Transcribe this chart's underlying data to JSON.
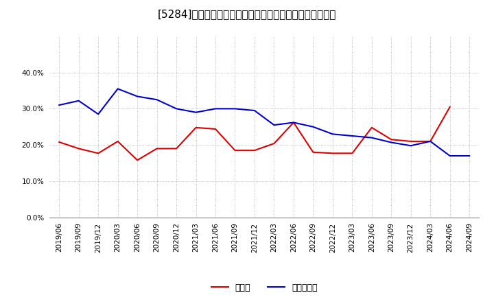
{
  "title": "[5284]　現預金、有利子負債の総資産に対する比率の推移",
  "x_labels": [
    "2019/06",
    "2019/09",
    "2019/12",
    "2020/03",
    "2020/06",
    "2020/09",
    "2020/12",
    "2021/03",
    "2021/06",
    "2021/09",
    "2021/12",
    "2022/03",
    "2022/06",
    "2022/09",
    "2022/12",
    "2023/03",
    "2023/06",
    "2023/09",
    "2023/12",
    "2024/03",
    "2024/06",
    "2024/09"
  ],
  "cash": [
    0.208,
    0.19,
    0.177,
    0.21,
    0.158,
    0.19,
    0.19,
    0.248,
    0.244,
    0.185,
    0.185,
    0.204,
    0.262,
    0.18,
    0.177,
    0.177,
    0.248,
    0.215,
    0.21,
    0.21,
    0.305,
    null
  ],
  "debt": [
    0.31,
    0.322,
    0.285,
    0.355,
    0.334,
    0.325,
    0.3,
    0.29,
    0.3,
    0.3,
    0.295,
    0.255,
    0.262,
    0.25,
    0.23,
    0.225,
    0.22,
    0.207,
    0.198,
    0.21,
    0.17,
    0.17
  ],
  "cash_color": "#dd0000",
  "debt_color": "#0000cc",
  "bg_color": "#ffffff",
  "grid_color": "#aaaaaa",
  "ylim": [
    0.0,
    0.5
  ],
  "yticks": [
    0.0,
    0.1,
    0.2,
    0.3,
    0.4
  ],
  "legend_cash": "現預金",
  "legend_debt": "有利子負債",
  "title_fontsize": 11,
  "tick_fontsize": 7.5,
  "legend_fontsize": 9
}
